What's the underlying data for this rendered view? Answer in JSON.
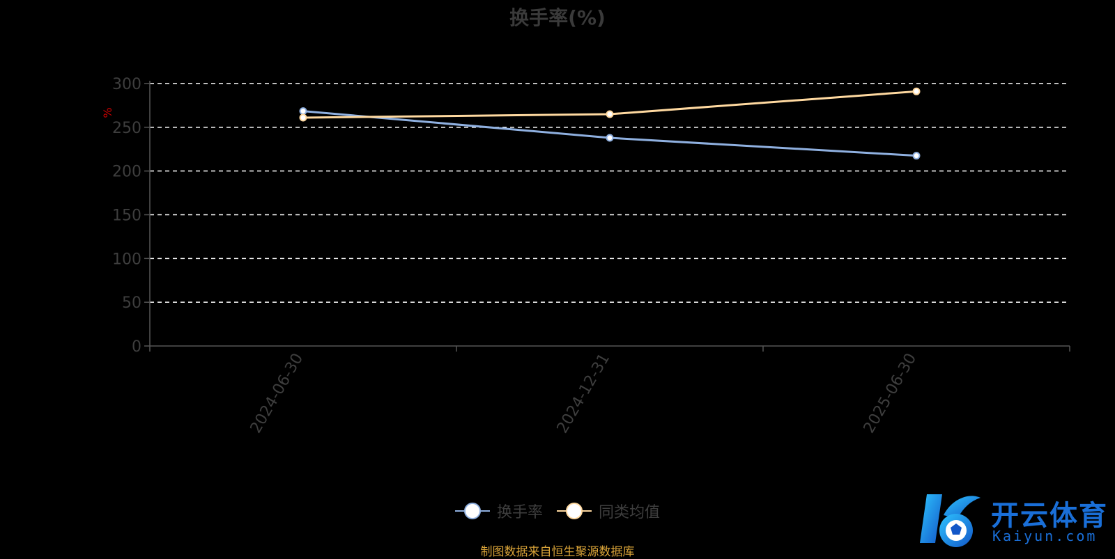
{
  "chart_data": {
    "type": "line",
    "title": "换手率(%)",
    "ylabel": "%",
    "xlabel": "",
    "categories": [
      "2024-06-30",
      "2024-12-31",
      "2025-06-30"
    ],
    "ylim": [
      0,
      300
    ],
    "yticks": [
      0,
      50,
      100,
      150,
      200,
      250,
      300
    ],
    "grid": true,
    "legend_position": "bottom",
    "series": [
      {
        "name": "换手率",
        "values": [
          268.5,
          237.9,
          217.5
        ],
        "color": "#8fb0e0"
      },
      {
        "name": "同类均值",
        "values": [
          261,
          265,
          291
        ],
        "color": "#ffd9a0"
      }
    ]
  },
  "footer": {
    "source": "制图数据来自恒生聚源数据库"
  },
  "watermark": {
    "cn": "开云体育",
    "en": "Kaiyun.com"
  },
  "colors": {
    "background": "#000000",
    "axis": "#555555",
    "grid": "#ffffff",
    "ylabel": "#cc0000",
    "source": "#d9a338",
    "logo": "#1a6fd8"
  }
}
